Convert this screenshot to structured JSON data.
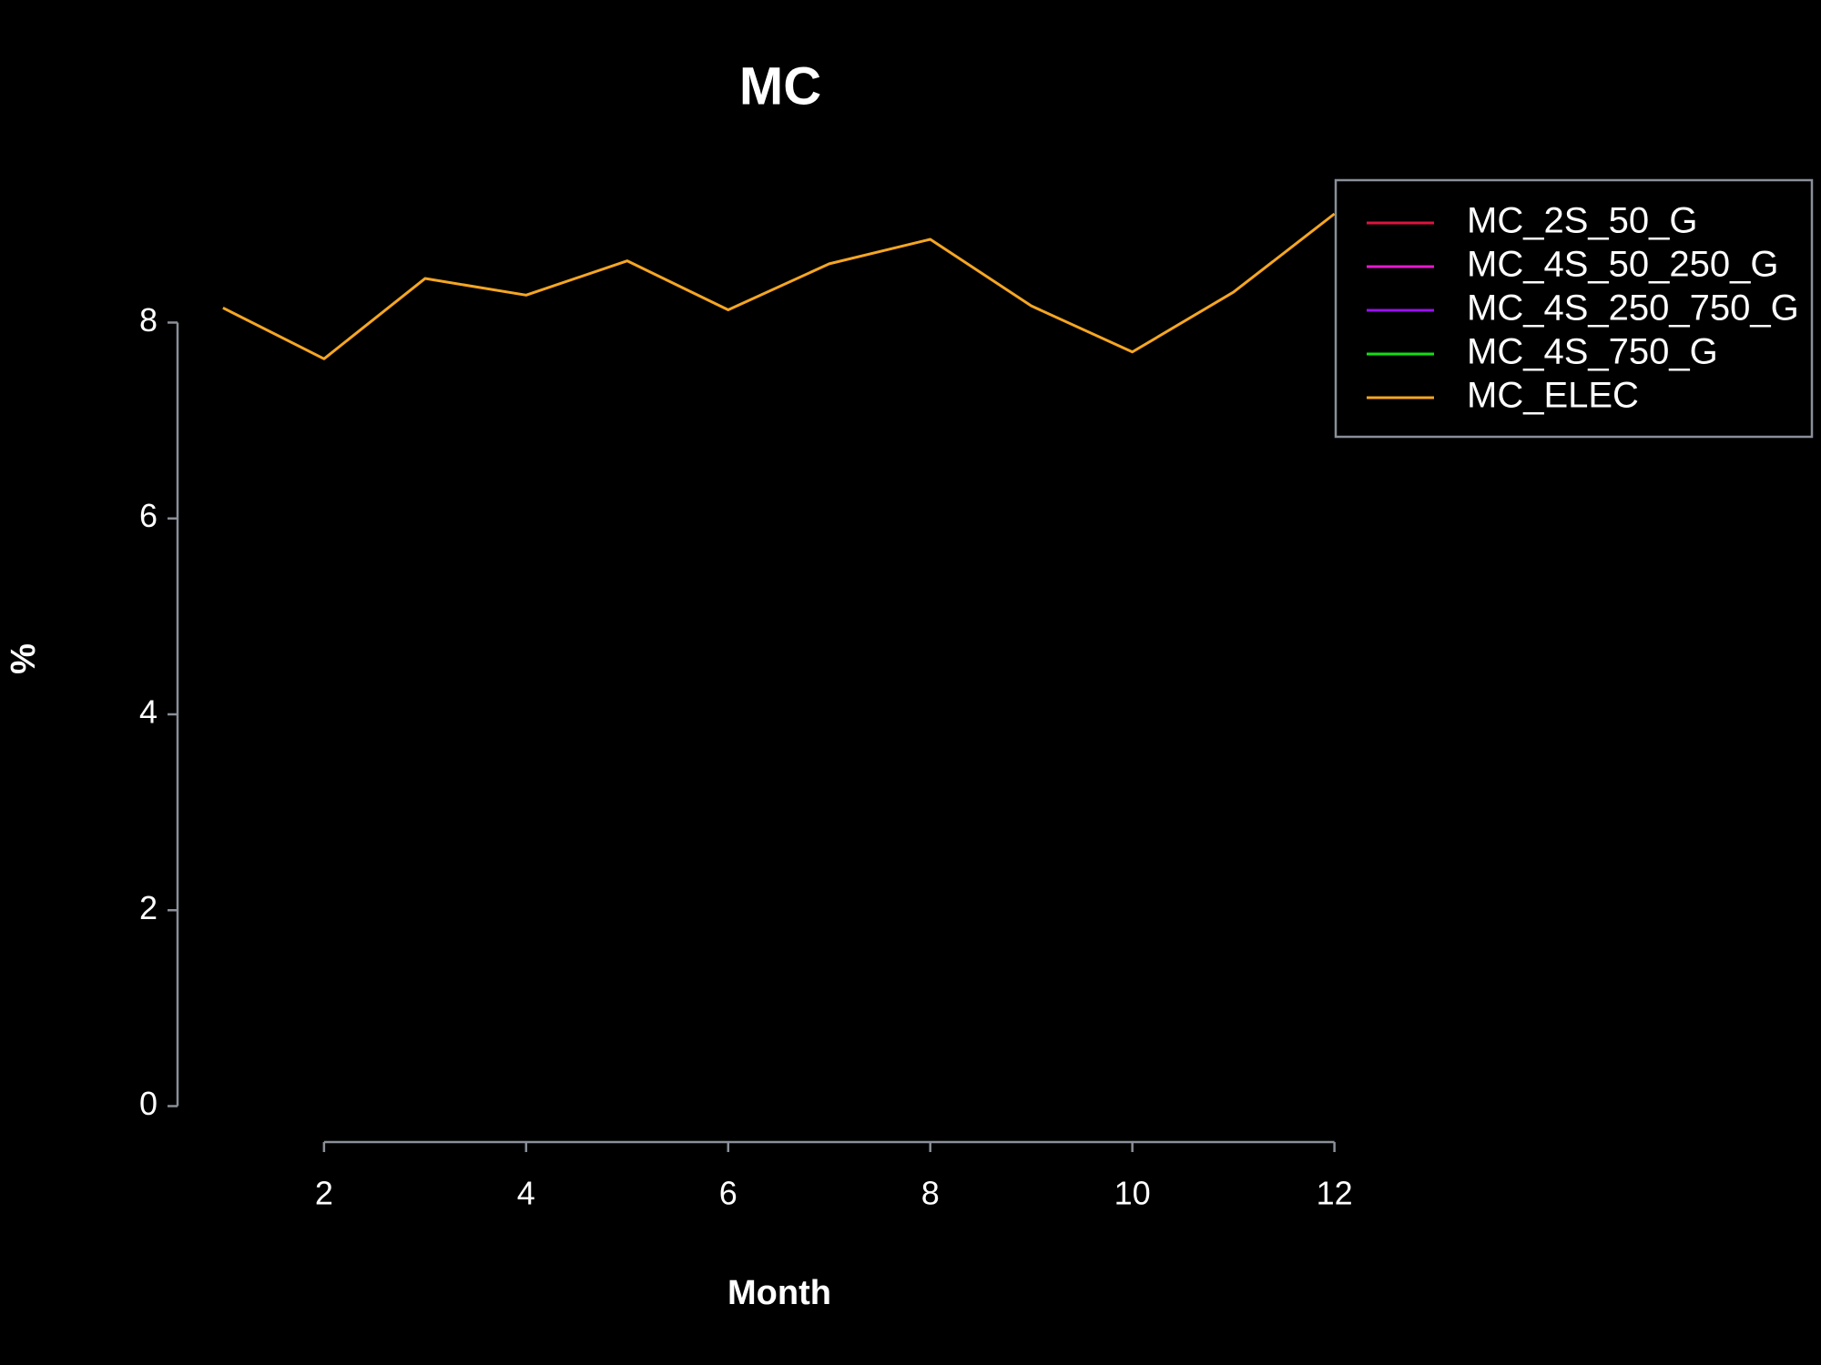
{
  "chart_data": {
    "type": "line",
    "title": "MC",
    "x_label": "Month",
    "y_label": "%",
    "x": [
      1,
      2,
      3,
      4,
      5,
      6,
      7,
      8,
      9,
      10,
      11,
      12
    ],
    "series": [
      {
        "name": "MC_2S_50_G",
        "color": "#dc143c",
        "values": [
          null,
          null,
          null,
          null,
          null,
          null,
          null,
          null,
          null,
          null,
          null,
          null
        ]
      },
      {
        "name": "MC_4S_50_250_G",
        "color": "#e819d0",
        "values": [
          null,
          null,
          null,
          null,
          null,
          null,
          null,
          null,
          null,
          null,
          null,
          null
        ]
      },
      {
        "name": "MC_4S_250_750_G",
        "color": "#9a10f0",
        "values": [
          null,
          null,
          null,
          null,
          null,
          null,
          null,
          null,
          null,
          null,
          null,
          null
        ]
      },
      {
        "name": "MC_4S_750_G",
        "color": "#10e010",
        "values": [
          null,
          null,
          null,
          null,
          null,
          null,
          null,
          null,
          null,
          null,
          null,
          null
        ]
      },
      {
        "name": "MC_ELEC",
        "color": "#f5a623",
        "values": [
          8.15,
          7.63,
          8.45,
          8.28,
          8.63,
          8.13,
          8.6,
          8.85,
          8.17,
          7.7,
          8.31,
          9.11
        ]
      }
    ],
    "xlim": [
      1,
      12
    ],
    "xticks": [
      2,
      4,
      6,
      8,
      10,
      12
    ],
    "ylim": [
      0,
      9.11
    ],
    "yticks": [
      0,
      2,
      4,
      6,
      8
    ],
    "legend": "top-right"
  }
}
